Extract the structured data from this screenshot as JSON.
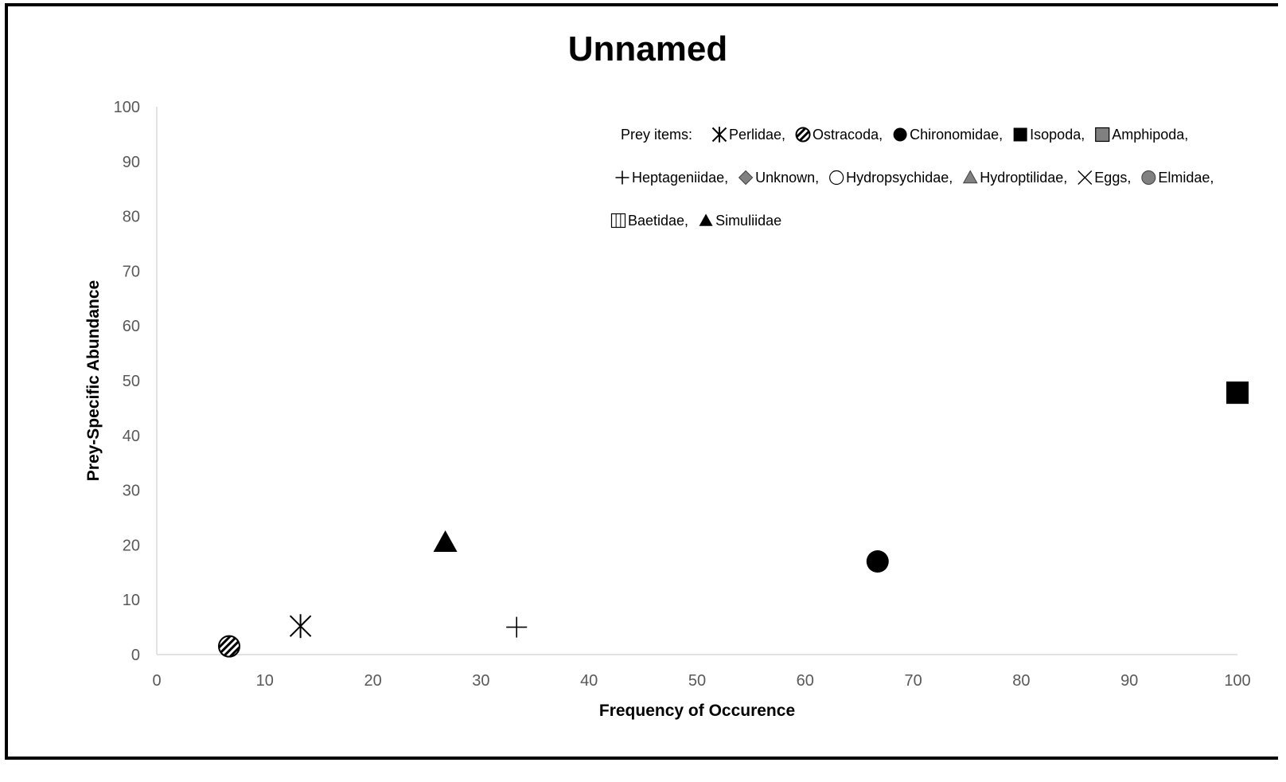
{
  "chart_data": {
    "type": "scatter",
    "title": "Unnamed",
    "xlabel": "Frequency of Occurence",
    "ylabel": "Prey-Specific Abundance",
    "xlim": [
      0,
      100
    ],
    "ylim": [
      0,
      100
    ],
    "x_ticks": [
      "0",
      "10",
      "20",
      "30",
      "40",
      "50",
      "60",
      "70",
      "80",
      "90",
      "100"
    ],
    "y_ticks": [
      "0",
      "10",
      "20",
      "30",
      "40",
      "50",
      "60",
      "70",
      "80",
      "90",
      "100"
    ],
    "grid": false,
    "legend_title": "Prey items:",
    "legend_position": "top-right",
    "legend": [
      {
        "label": "Perlidae,",
        "marker": "asterisk"
      },
      {
        "label": "Ostracoda,",
        "marker": "hatched-circle"
      },
      {
        "label": "Chironomidae,",
        "marker": "circle-black"
      },
      {
        "label": "Isopoda,",
        "marker": "square-black"
      },
      {
        "label": "Amphipoda,",
        "marker": "square-gray"
      },
      {
        "label": "Heptageniidae,",
        "marker": "plus"
      },
      {
        "label": "Unknown,",
        "marker": "diamond-gray"
      },
      {
        "label": "Hydropsychidae,",
        "marker": "circle-open"
      },
      {
        "label": "Hydroptilidae,",
        "marker": "triangle-gray"
      },
      {
        "label": "Eggs,",
        "marker": "cross"
      },
      {
        "label": "Elmidae,",
        "marker": "circle-gray"
      },
      {
        "label": "Baetidae,",
        "marker": "square-striped"
      },
      {
        "label": "Simuliidae",
        "marker": "triangle-black"
      }
    ],
    "series": [
      {
        "name": "Ostracoda",
        "marker": "hatched-circle",
        "x": 6.7,
        "y": 1.5
      },
      {
        "name": "Perlidae",
        "marker": "asterisk",
        "x": 13.3,
        "y": 5.2
      },
      {
        "name": "Simuliidae",
        "marker": "triangle-black",
        "x": 26.7,
        "y": 20.5
      },
      {
        "name": "Heptageniidae",
        "marker": "plus",
        "x": 33.3,
        "y": 5.0
      },
      {
        "name": "Chironomidae",
        "marker": "circle-black",
        "x": 66.7,
        "y": 17.0
      },
      {
        "name": "Isopoda",
        "marker": "square-black",
        "x": 100,
        "y": 47.8
      }
    ]
  }
}
